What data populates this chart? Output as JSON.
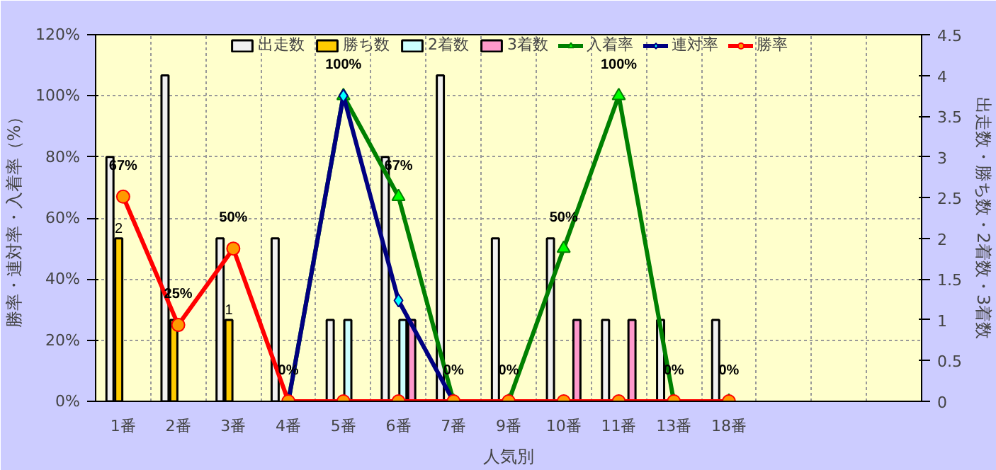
{
  "chart_data": {
    "type": "bar",
    "xlabel": "人気別",
    "ylabel": "勝率・連対率・入着率（%）",
    "y2label": "出走数・勝ち数・2着数・3着数",
    "categories": [
      "1番",
      "2番",
      "3番",
      "4番",
      "5番",
      "6番",
      "7番",
      "9番",
      "10番",
      "11番",
      "13番",
      "18番",
      null,
      null,
      null
    ],
    "ylim": [
      0,
      120
    ],
    "yticks": [
      {
        "value": 0,
        "label": "0%"
      },
      {
        "value": 20,
        "label": "20%"
      },
      {
        "value": 40,
        "label": "40%"
      },
      {
        "value": 60,
        "label": "60%"
      },
      {
        "value": 80,
        "label": "80%"
      },
      {
        "value": 100,
        "label": "100%"
      },
      {
        "value": 120,
        "label": "120%"
      }
    ],
    "y2lim": [
      0,
      4.5
    ],
    "y2ticks": [
      0,
      0.5,
      1,
      1.5,
      2,
      2.5,
      3,
      3.5,
      4,
      4.5
    ],
    "grid": true,
    "legend": "top",
    "series": [
      {
        "name": "出走数",
        "axis": "y2",
        "color": "#f0f0f0",
        "values": [
          3,
          4,
          2,
          2,
          1,
          3,
          4,
          2,
          2,
          1,
          1,
          1,
          null,
          null,
          null
        ]
      },
      {
        "name": "勝ち数",
        "axis": "y2",
        "color": "#ffcc00",
        "values": [
          2,
          1,
          1,
          null,
          null,
          null,
          null,
          null,
          null,
          null,
          null,
          null,
          null,
          null,
          null
        ],
        "value_labels": [
          "2",
          null,
          "1",
          null,
          null,
          null,
          null,
          null,
          null,
          null,
          null,
          null,
          null,
          null,
          null
        ]
      },
      {
        "name": "2着数",
        "axis": "y2",
        "color": "#ccffff",
        "values": [
          null,
          null,
          null,
          null,
          1,
          1,
          null,
          null,
          null,
          null,
          null,
          null,
          null,
          null,
          null
        ]
      },
      {
        "name": "3着数",
        "axis": "y2",
        "color": "#ff99cc",
        "values": [
          null,
          null,
          null,
          null,
          null,
          1,
          null,
          null,
          1,
          1,
          null,
          null,
          null,
          null,
          null
        ]
      },
      {
        "name": "入着率",
        "type": "line",
        "color": "#008000",
        "marker": "triangle",
        "values": [
          null,
          null,
          null,
          0,
          100,
          67,
          0,
          0,
          50,
          100,
          0,
          0,
          null,
          null,
          null
        ],
        "value_labels": [
          null,
          null,
          null,
          "0%",
          "100%",
          "67%",
          "0%",
          "0%",
          "50%",
          "100%",
          "0%",
          "0%",
          null,
          null,
          null
        ]
      },
      {
        "name": "連対率",
        "type": "line",
        "color": "#000080",
        "marker": "diamond",
        "values": [
          null,
          null,
          null,
          0,
          100,
          33,
          0,
          0,
          0,
          0,
          0,
          0,
          null,
          null,
          null
        ]
      },
      {
        "name": "勝率",
        "type": "line",
        "color": "#ff0000",
        "marker": "circle",
        "values": [
          67,
          25,
          50,
          0,
          0,
          0,
          0,
          0,
          0,
          0,
          0,
          0,
          null,
          null,
          null
        ],
        "value_labels": [
          "67%",
          "25%",
          "50%",
          null,
          null,
          null,
          null,
          null,
          null,
          null,
          null,
          null,
          null,
          null,
          null
        ]
      }
    ]
  }
}
